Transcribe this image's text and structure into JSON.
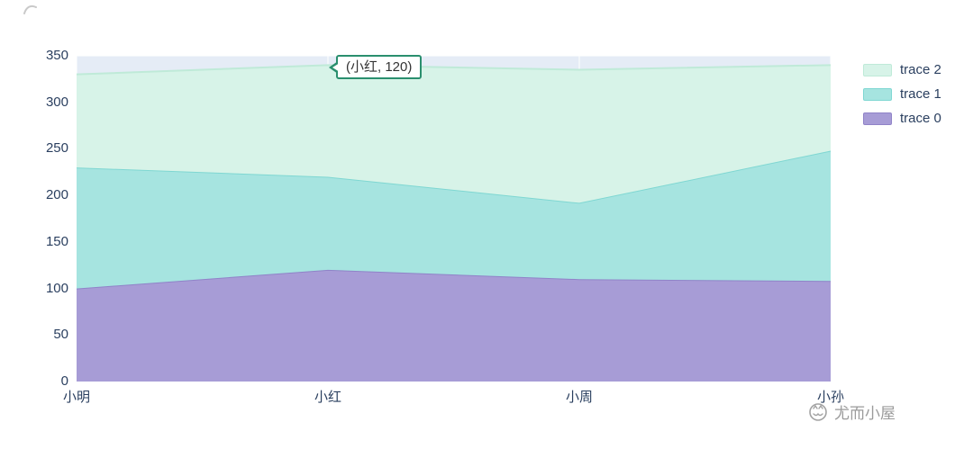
{
  "chart_data": {
    "type": "area",
    "stacked": true,
    "title": "",
    "xlabel": "",
    "ylabel": "",
    "categories": [
      "小明",
      "小红",
      "小周",
      "小孙"
    ],
    "series": [
      {
        "name": "trace 0",
        "values": [
          100,
          120,
          110,
          108
        ],
        "fill": "#a79cd6",
        "line": "#9083c8"
      },
      {
        "name": "trace 1",
        "values": [
          130,
          100,
          82,
          140
        ],
        "fill": "#a6e4e0",
        "line": "#7fd7d2"
      },
      {
        "name": "trace 2",
        "values": [
          100,
          120,
          143,
          92
        ],
        "fill": "#d7f3e8",
        "line": "#bfead8"
      }
    ],
    "ylim": [
      0,
      350
    ],
    "yticks": [
      0,
      50,
      100,
      150,
      200,
      250,
      300,
      350
    ],
    "grid": true,
    "gridline_color": "#ffffff",
    "plot_bg": "#e5ecf6",
    "axis_text_color": "#2a3f5f",
    "legend_position": "right"
  },
  "legend": {
    "items": [
      {
        "label": "trace 2",
        "color": "#d7f3e8",
        "line": "#bfead8"
      },
      {
        "label": "trace 1",
        "color": "#a6e4e0",
        "line": "#7fd7d2"
      },
      {
        "label": "trace 0",
        "color": "#a79cd6",
        "line": "#9083c8"
      }
    ]
  },
  "tooltip": {
    "text": "(小红, 120)",
    "border_color": "#2a8f6e",
    "text_color": "#333333"
  },
  "watermark": {
    "text": "尤而小屋"
  },
  "icons": {
    "watermark_logo": "circle-cat-doodle",
    "corner_mark": "small-gray-stroke"
  }
}
